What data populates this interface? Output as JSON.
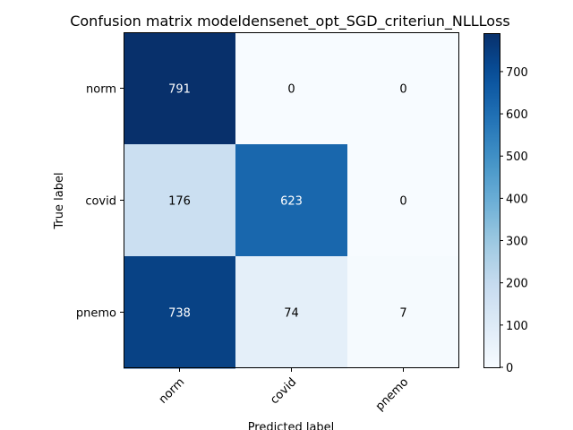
{
  "chart_data": {
    "type": "heatmap",
    "title": "Confusion matrix modeldensenet_opt_SGD_criteriun_NLLLoss",
    "xlabel": "Predicted label",
    "ylabel": "True label",
    "x_categories": [
      "norm",
      "covid",
      "pnemo"
    ],
    "y_categories": [
      "norm",
      "covid",
      "pnemo"
    ],
    "values": [
      [
        791,
        0,
        0
      ],
      [
        176,
        623,
        0
      ],
      [
        738,
        74,
        7
      ]
    ],
    "colorbar": {
      "min": 0,
      "max": 791,
      "ticks": [
        0,
        100,
        200,
        300,
        400,
        500,
        600,
        700
      ],
      "colormap": "Blues"
    },
    "colors": {
      "low": "#f7fbff",
      "high": "#08306b",
      "text_dark": "#000000",
      "text_light": "#ffffff"
    }
  }
}
